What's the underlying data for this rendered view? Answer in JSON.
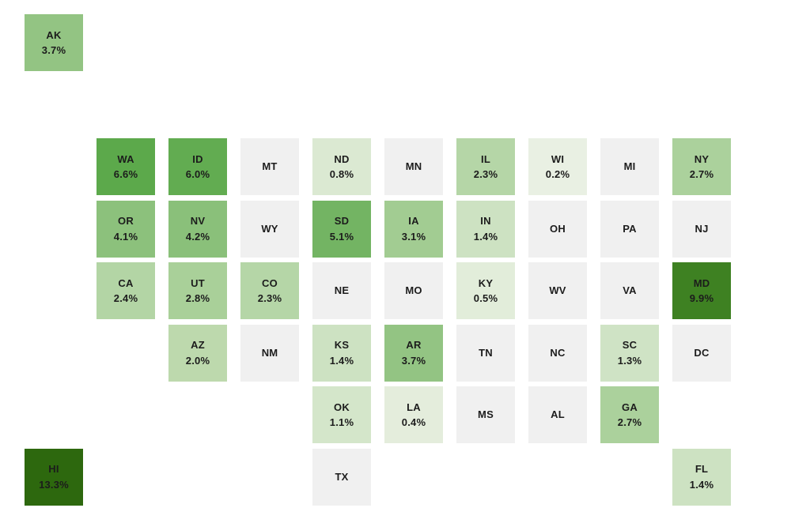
{
  "chart_data": {
    "type": "heatmap",
    "subtype": "us-state-tile-grid-map",
    "title": "",
    "value_format": "percent",
    "legend": "none",
    "no_data_color": "#f0f0f0",
    "text_color": "#1c1c1c",
    "color_scale": {
      "palette": "greens",
      "min_value": 0.2,
      "max_value": 13.3,
      "min_color": "#e9f0e3",
      "max_color": "#2d680e"
    },
    "states": [
      {
        "abbr": "AK",
        "value": "3.7%",
        "row": 0,
        "col": 0,
        "color": "#93c483"
      },
      {
        "abbr": "WA",
        "value": "6.6%",
        "row": 2,
        "col": 1,
        "color": "#5ca94b"
      },
      {
        "abbr": "ID",
        "value": "6.0%",
        "row": 2,
        "col": 2,
        "color": "#62ac51"
      },
      {
        "abbr": "MT",
        "value": null,
        "row": 2,
        "col": 3,
        "color": "#f0f0f0"
      },
      {
        "abbr": "ND",
        "value": "0.8%",
        "row": 2,
        "col": 4,
        "color": "#dbe9d2"
      },
      {
        "abbr": "MN",
        "value": null,
        "row": 2,
        "col": 5,
        "color": "#f0f0f0"
      },
      {
        "abbr": "IL",
        "value": "2.3%",
        "row": 2,
        "col": 6,
        "color": "#b5d6a7"
      },
      {
        "abbr": "WI",
        "value": "0.2%",
        "row": 2,
        "col": 7,
        "color": "#e9f0e3"
      },
      {
        "abbr": "MI",
        "value": null,
        "row": 2,
        "col": 8,
        "color": "#f0f0f0"
      },
      {
        "abbr": "NY",
        "value": "2.7%",
        "row": 2,
        "col": 9,
        "color": "#abd19c"
      },
      {
        "abbr": "OR",
        "value": "4.1%",
        "row": 3,
        "col": 1,
        "color": "#8cc17c"
      },
      {
        "abbr": "NV",
        "value": "4.2%",
        "row": 3,
        "col": 2,
        "color": "#8ac07a"
      },
      {
        "abbr": "WY",
        "value": null,
        "row": 3,
        "col": 3,
        "color": "#f0f0f0"
      },
      {
        "abbr": "SD",
        "value": "5.1%",
        "row": 3,
        "col": 4,
        "color": "#73b463"
      },
      {
        "abbr": "IA",
        "value": "3.1%",
        "row": 3,
        "col": 5,
        "color": "#a2cc92"
      },
      {
        "abbr": "IN",
        "value": "1.4%",
        "row": 3,
        "col": 6,
        "color": "#cde2c2"
      },
      {
        "abbr": "OH",
        "value": null,
        "row": 3,
        "col": 7,
        "color": "#f0f0f0"
      },
      {
        "abbr": "PA",
        "value": null,
        "row": 3,
        "col": 8,
        "color": "#f0f0f0"
      },
      {
        "abbr": "NJ",
        "value": null,
        "row": 3,
        "col": 9,
        "color": "#f0f0f0"
      },
      {
        "abbr": "CA",
        "value": "2.4%",
        "row": 4,
        "col": 1,
        "color": "#b3d5a5"
      },
      {
        "abbr": "UT",
        "value": "2.8%",
        "row": 4,
        "col": 2,
        "color": "#a9d099"
      },
      {
        "abbr": "CO",
        "value": "2.3%",
        "row": 4,
        "col": 3,
        "color": "#b5d6a7"
      },
      {
        "abbr": "NE",
        "value": null,
        "row": 4,
        "col": 4,
        "color": "#f0f0f0"
      },
      {
        "abbr": "MO",
        "value": null,
        "row": 4,
        "col": 5,
        "color": "#f0f0f0"
      },
      {
        "abbr": "KY",
        "value": "0.5%",
        "row": 4,
        "col": 6,
        "color": "#e2edda"
      },
      {
        "abbr": "WV",
        "value": null,
        "row": 4,
        "col": 7,
        "color": "#f0f0f0"
      },
      {
        "abbr": "VA",
        "value": null,
        "row": 4,
        "col": 8,
        "color": "#f0f0f0"
      },
      {
        "abbr": "MD",
        "value": "9.9%",
        "row": 4,
        "col": 9,
        "color": "#3e8122"
      },
      {
        "abbr": "AZ",
        "value": "2.0%",
        "row": 5,
        "col": 2,
        "color": "#bdd9ad"
      },
      {
        "abbr": "NM",
        "value": null,
        "row": 5,
        "col": 3,
        "color": "#f0f0f0"
      },
      {
        "abbr": "KS",
        "value": "1.4%",
        "row": 5,
        "col": 4,
        "color": "#cde2c2"
      },
      {
        "abbr": "AR",
        "value": "3.7%",
        "row": 5,
        "col": 5,
        "color": "#93c483"
      },
      {
        "abbr": "TN",
        "value": null,
        "row": 5,
        "col": 6,
        "color": "#f0f0f0"
      },
      {
        "abbr": "NC",
        "value": null,
        "row": 5,
        "col": 7,
        "color": "#f0f0f0"
      },
      {
        "abbr": "SC",
        "value": "1.3%",
        "row": 5,
        "col": 8,
        "color": "#cfe3c5"
      },
      {
        "abbr": "DC",
        "value": null,
        "row": 5,
        "col": 9,
        "color": "#f0f0f0"
      },
      {
        "abbr": "OK",
        "value": "1.1%",
        "row": 6,
        "col": 4,
        "color": "#d4e6ca"
      },
      {
        "abbr": "LA",
        "value": "0.4%",
        "row": 6,
        "col": 5,
        "color": "#e4eddc"
      },
      {
        "abbr": "MS",
        "value": null,
        "row": 6,
        "col": 6,
        "color": "#f0f0f0"
      },
      {
        "abbr": "AL",
        "value": null,
        "row": 6,
        "col": 7,
        "color": "#f0f0f0"
      },
      {
        "abbr": "GA",
        "value": "2.7%",
        "row": 6,
        "col": 8,
        "color": "#abd19c"
      },
      {
        "abbr": "HI",
        "value": "13.3%",
        "row": 7,
        "col": 0,
        "color": "#2d680e"
      },
      {
        "abbr": "TX",
        "value": null,
        "row": 7,
        "col": 4,
        "color": "#f0f0f0"
      },
      {
        "abbr": "FL",
        "value": "1.4%",
        "row": 7,
        "col": 9,
        "color": "#cde2c2"
      }
    ]
  }
}
